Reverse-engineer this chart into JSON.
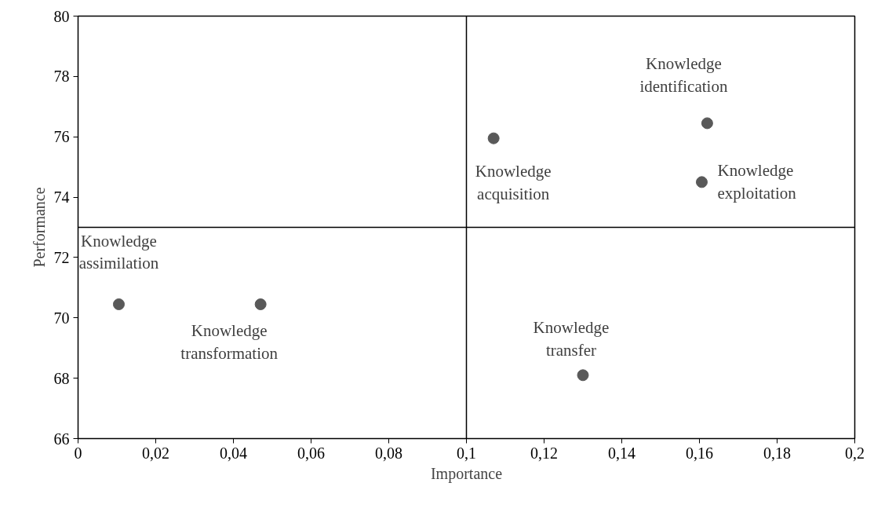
{
  "chart_data": {
    "type": "scatter",
    "xlabel": "Importance",
    "ylabel": "Performance",
    "xlim": [
      0,
      0.2
    ],
    "ylim": [
      66,
      80
    ],
    "xticks": [
      0,
      {
        "value": 0.02,
        "label": "0,02"
      },
      {
        "value": 0.04,
        "label": "0,04"
      },
      {
        "value": 0.06,
        "label": "0,06"
      },
      {
        "value": 0.08,
        "label": "0,08"
      },
      {
        "value": 0.1,
        "label": "0,1"
      },
      {
        "value": 0.12,
        "label": "0,12"
      },
      {
        "value": 0.14,
        "label": "0,14"
      },
      {
        "value": 0.16,
        "label": "0,16"
      },
      {
        "value": 0.18,
        "label": "0,18"
      },
      {
        "value": 0.2,
        "label": "0,2"
      }
    ],
    "yticks": [
      66,
      68,
      70,
      72,
      74,
      76,
      78,
      80
    ],
    "grid": false,
    "marker": "circle",
    "ref_lines": [
      {
        "axis": "x",
        "value": 0.1,
        "color": "#000000"
      },
      {
        "axis": "y",
        "value": 73,
        "color": "#000000"
      }
    ],
    "series": [
      {
        "name": "Knowledge assimilation",
        "color": "#595959",
        "x": [
          0.0105
        ],
        "values": [
          70.45
        ]
      },
      {
        "name": "Knowledge transformation",
        "color": "#595959",
        "x": [
          0.047
        ],
        "values": [
          70.45
        ]
      },
      {
        "name": "Knowledge acquisition",
        "color": "#595959",
        "x": [
          0.107
        ],
        "values": [
          75.95
        ]
      },
      {
        "name": "Knowledge identification",
        "color": "#595959",
        "x": [
          0.162
        ],
        "values": [
          76.45
        ]
      },
      {
        "name": "Knowledge exploitation",
        "color": "#595959",
        "x": [
          0.1606
        ],
        "values": [
          74.5
        ]
      },
      {
        "name": "Knowledge transfer",
        "color": "#595959",
        "x": [
          0.13
        ],
        "values": [
          68.1
        ]
      }
    ]
  }
}
